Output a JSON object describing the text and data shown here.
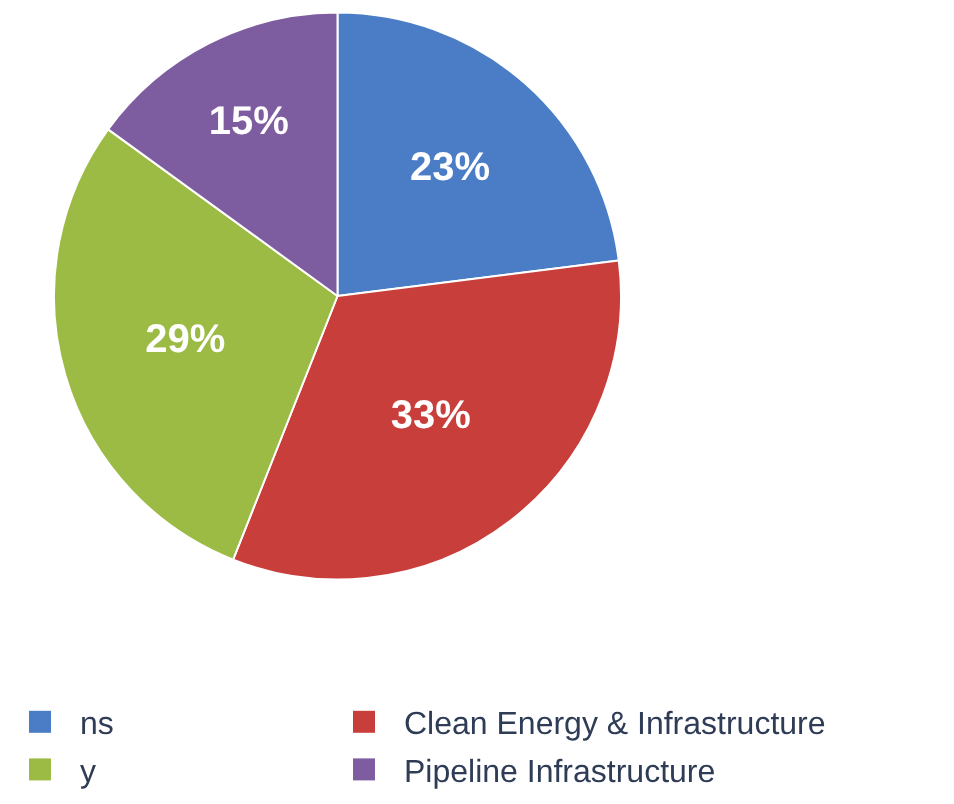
{
  "chart_data": {
    "type": "pie",
    "categories": [
      "ns",
      "Clean Energy & Infrastructure",
      "y",
      "Pipeline Infrastructure"
    ],
    "values": [
      23,
      33,
      29,
      15
    ],
    "value_labels": [
      "23%",
      "33%",
      "29%",
      "15%"
    ],
    "colors": [
      "#4a7dc6",
      "#c83e3a",
      "#9bbb45",
      "#7d5ca0"
    ],
    "legend": "bottom"
  }
}
